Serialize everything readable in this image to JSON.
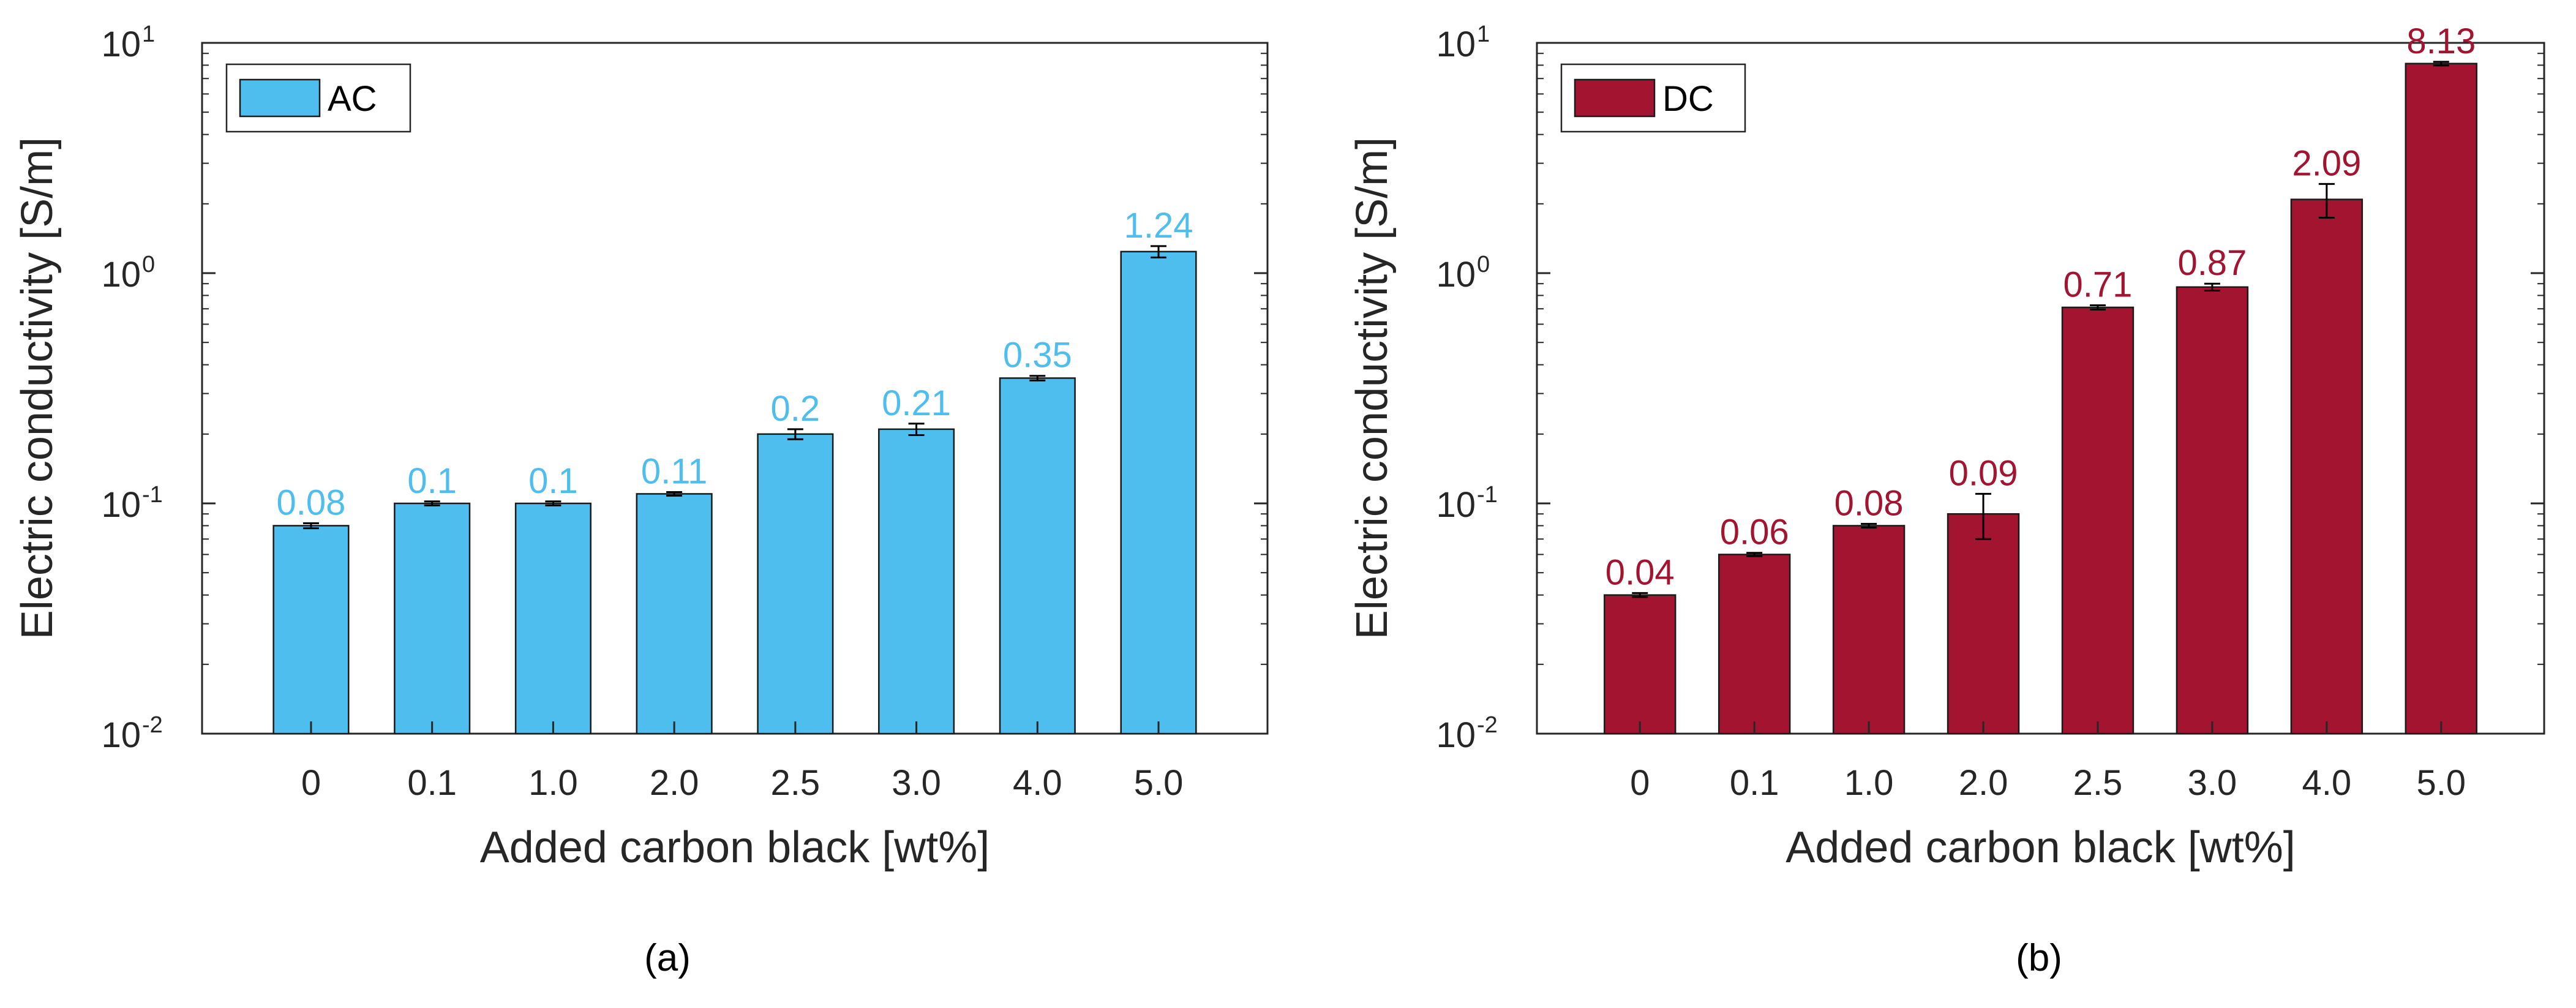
{
  "chart_data": [
    {
      "panel": "a",
      "type": "bar",
      "scale": "log",
      "title": "",
      "xlabel": "Added carbon black [wt%]",
      "ylabel": "Electric conductivity [S/m]",
      "ylim_exponents": [
        -2,
        1
      ],
      "ytick_base": "10",
      "yticks": [
        "-2",
        "-1",
        "0",
        "1"
      ],
      "categories": [
        "0",
        "0.1",
        "1.0",
        "2.0",
        "2.5",
        "3.0",
        "4.0",
        "5.0"
      ],
      "values": [
        0.08,
        0.1,
        0.1,
        0.11,
        0.2,
        0.21,
        0.35,
        1.24
      ],
      "value_labels": [
        "0.08",
        "0.1",
        "0.1",
        "0.11",
        "0.2",
        "0.21",
        "0.35",
        "1.24"
      ],
      "error": [
        0.002,
        0.002,
        0.002,
        0.002,
        0.01,
        0.012,
        0.008,
        0.07
      ],
      "legend": "AC",
      "legend_position": "top-left",
      "bar_color": "#4DBEEE",
      "label_color": "#4DBEEE",
      "caption": "(a)"
    },
    {
      "panel": "b",
      "type": "bar",
      "scale": "log",
      "title": "",
      "xlabel": "Added carbon black [wt%]",
      "ylabel": "Electric conductivity [S/m]",
      "ylim_exponents": [
        -2,
        1
      ],
      "ytick_base": "10",
      "yticks": [
        "-2",
        "-1",
        "0",
        "1"
      ],
      "categories": [
        "0",
        "0.1",
        "1.0",
        "2.0",
        "2.5",
        "3.0",
        "4.0",
        "5.0"
      ],
      "values": [
        0.04,
        0.06,
        0.08,
        0.09,
        0.71,
        0.87,
        2.09,
        8.13
      ],
      "value_labels": [
        "0.04",
        "0.06",
        "0.08",
        "0.09",
        "0.71",
        "0.87",
        "2.09",
        "8.13"
      ],
      "error": [
        0.0008,
        0.001,
        0.0015,
        0.02,
        0.015,
        0.03,
        0.35,
        0.15
      ],
      "legend": "DC",
      "legend_position": "top-left",
      "bar_color": "#A2142F",
      "label_color": "#A2142F",
      "caption": "(b)"
    }
  ]
}
